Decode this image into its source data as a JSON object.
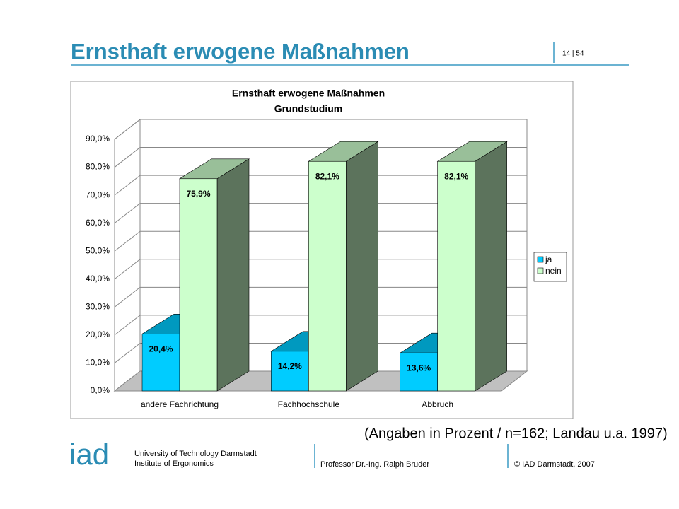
{
  "header": {
    "title": "Ernsthaft erwogene Maßnahmen",
    "page": "14 | 54"
  },
  "chart_data": {
    "type": "bar3d",
    "title": "Ernsthaft erwogene Maßnahmen",
    "subtitle": "Grundstudium",
    "categories": [
      "andere Fachrichtung",
      "Fachhochschule",
      "Abbruch"
    ],
    "series": [
      {
        "name": "ja",
        "color": "#00ccff",
        "values": [
          20.4,
          14.2,
          13.6
        ],
        "value_labels": [
          "20,4%",
          "14,2%",
          "13,6%"
        ]
      },
      {
        "name": "nein",
        "color": "#ccffcc",
        "values": [
          75.9,
          82.1,
          82.1
        ],
        "value_labels": [
          "75,9%",
          "82,1%",
          "82,1%"
        ]
      }
    ],
    "ylim": [
      0,
      90
    ],
    "yticks": [
      {
        "value": 0,
        "label": "0,0%"
      },
      {
        "value": 10,
        "label": "10,0%"
      },
      {
        "value": 20,
        "label": "20,0%"
      },
      {
        "value": 30,
        "label": "30,0%"
      },
      {
        "value": 40,
        "label": "40,0%"
      },
      {
        "value": 50,
        "label": "50,0%"
      },
      {
        "value": 60,
        "label": "60,0%"
      },
      {
        "value": 70,
        "label": "70,0%"
      },
      {
        "value": 80,
        "label": "80,0%"
      },
      {
        "value": 90,
        "label": "90,0%"
      }
    ],
    "grid": true,
    "legend": "right"
  },
  "note": "(Angaben in Prozent / n=162; Landau u.a. 1997)",
  "footer": {
    "logo": "iad",
    "university": "University of Technology Darmstadt",
    "institute": "Institute of Ergonomics",
    "professor": "Professor Dr.-Ing. Ralph Bruder",
    "copyright": "© IAD Darmstadt, 2007"
  }
}
